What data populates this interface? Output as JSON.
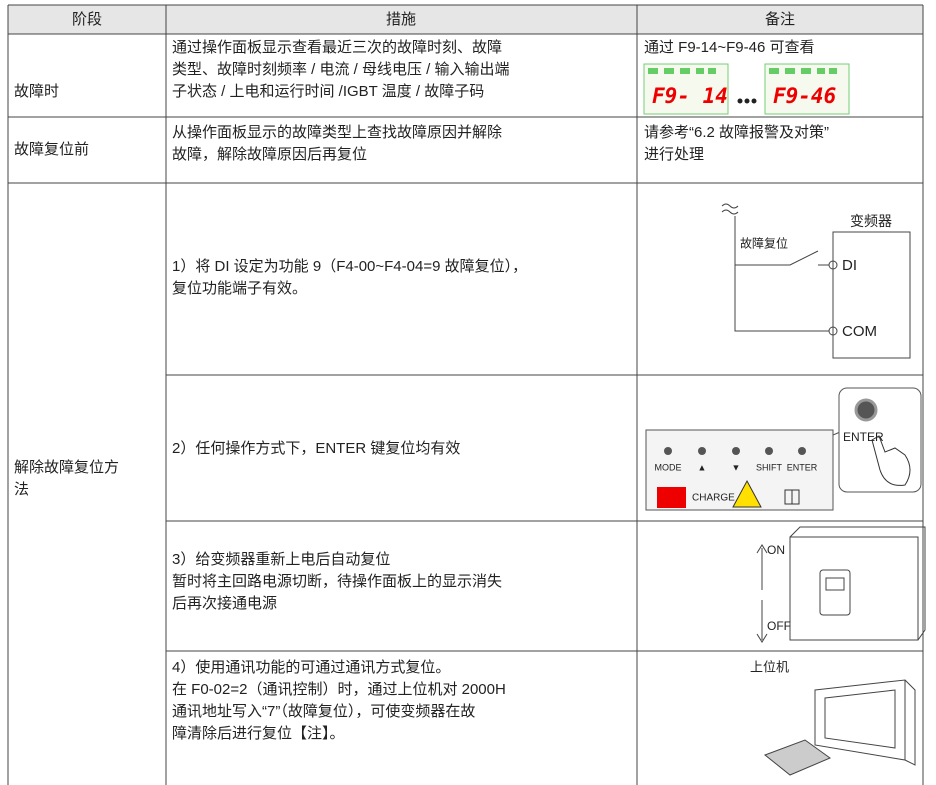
{
  "table": {
    "header": [
      "阶段",
      "措施",
      "备注"
    ],
    "rows": [
      {
        "stage": [
          "故障时"
        ],
        "measure": [
          "通过操作面板显示查看最近三次的故障时刻、故障",
          "类型、故障时刻频率 / 电流 / 母线电压 / 输入输出端",
          "子状态 / 上电和运行时间 /IGBT 温度 / 故障子码"
        ],
        "note": [
          "通过 F9-14~F9-46 可查看"
        ],
        "displays": [
          "F9- 14",
          "F9-46"
        ]
      },
      {
        "stage": [
          "故障复位前"
        ],
        "measure": [
          "从操作面板显示的故障类型上查找故障原因并解除",
          "故障，解除故障原因后再复位"
        ],
        "note": [
          "请参考“6.2 故障报警及对策”",
          "进行处理"
        ]
      },
      {
        "stage": [
          "解除故障复位方",
          "法"
        ],
        "methods": [
          {
            "measure": [
              "1）将 DI 设定为功能 9（F4-00~F4-04=9 故障复位），",
              "复位功能端子有效。"
            ],
            "diagram": {
              "device": "变频器",
              "switch": "故障复位",
              "terminals": [
                "DI",
                "COM"
              ]
            }
          },
          {
            "measure": [
              "2）任何操作方式下，ENTER 键复位均有效"
            ],
            "diagram": {
              "keys": [
                "MODE",
                "▲",
                "▼",
                "SHIFT",
                "ENTER"
              ],
              "indicator": "CHARGE",
              "callout": "ENTER"
            }
          },
          {
            "measure": [
              "3）给变频器重新上电后自动复位",
              "暂时将主回路电源切断，待操作面板上的显示消失",
              "后再次接通电源"
            ],
            "diagram": {
              "on": "ON",
              "off": "OFF"
            }
          },
          {
            "measure": [
              "4）使用通讯功能的可通过通讯方式复位。",
              "在 F0-02=2（通讯控制）时，通过上位机对 2000H",
              "通讯地址写入“7”（故障复位），可使变频器在故",
              "障清除后进行复位【注】。"
            ],
            "diagram": {
              "host": "上位机"
            }
          }
        ]
      }
    ]
  }
}
